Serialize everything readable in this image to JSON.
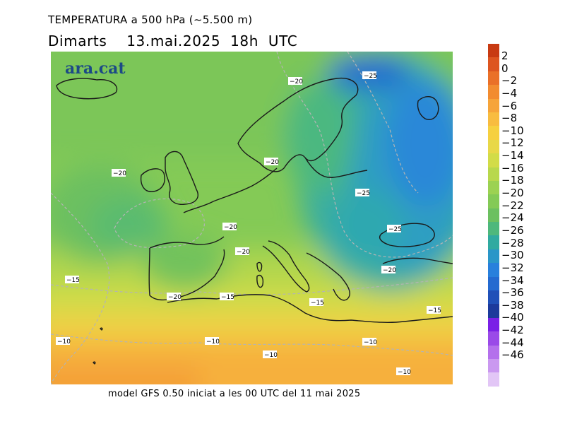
{
  "header": {
    "title": "TEMPERATURA a 500 hPa (~5.500 m)",
    "date_line": "Dimarts    13.mai.2025  18h  UTC"
  },
  "logo": {
    "text": "ara.cat",
    "color": "#1c4a86"
  },
  "footer": {
    "text": "model GFS 0.50 iniciat a les 00 UTC del 11 mai 2025"
  },
  "colorbar": {
    "labels": [
      "2",
      "0",
      "−2",
      "−4",
      "−6",
      "−8",
      "−10",
      "−12",
      "−14",
      "−16",
      "−18",
      "−20",
      "−22",
      "−24",
      "−26",
      "−28",
      "−30",
      "−32",
      "−34",
      "−36",
      "−38",
      "−40",
      "−42",
      "−44",
      "−46"
    ],
    "colors": [
      "#c83a12",
      "#dd5520",
      "#ea7028",
      "#f28c30",
      "#f6a43a",
      "#f8bc40",
      "#f6d040",
      "#e8d848",
      "#d2dc48",
      "#b8d84c",
      "#9cd252",
      "#84ca56",
      "#6cc060",
      "#4eb87c",
      "#30aaa0",
      "#2a96c8",
      "#2880dc",
      "#246ad0",
      "#2050b8",
      "#1c3a9c",
      "#7a20e6",
      "#9a4ae8",
      "#b470ec",
      "#ca98f0",
      "#e2c6f6"
    ]
  },
  "map": {
    "contour_labels": [
      {
        "text": "−20"
      },
      {
        "text": "−25"
      },
      {
        "text": "−20"
      },
      {
        "text": "−20"
      },
      {
        "text": "−25"
      },
      {
        "text": "−20"
      },
      {
        "text": "−20"
      },
      {
        "text": "−25"
      },
      {
        "text": "−15"
      },
      {
        "text": "−20"
      },
      {
        "text": "−15"
      },
      {
        "text": "−20"
      },
      {
        "text": "−15"
      },
      {
        "text": "−15"
      },
      {
        "text": "−10"
      },
      {
        "text": "−10"
      },
      {
        "text": "−10"
      },
      {
        "text": "−10"
      },
      {
        "text": "−10"
      }
    ]
  }
}
